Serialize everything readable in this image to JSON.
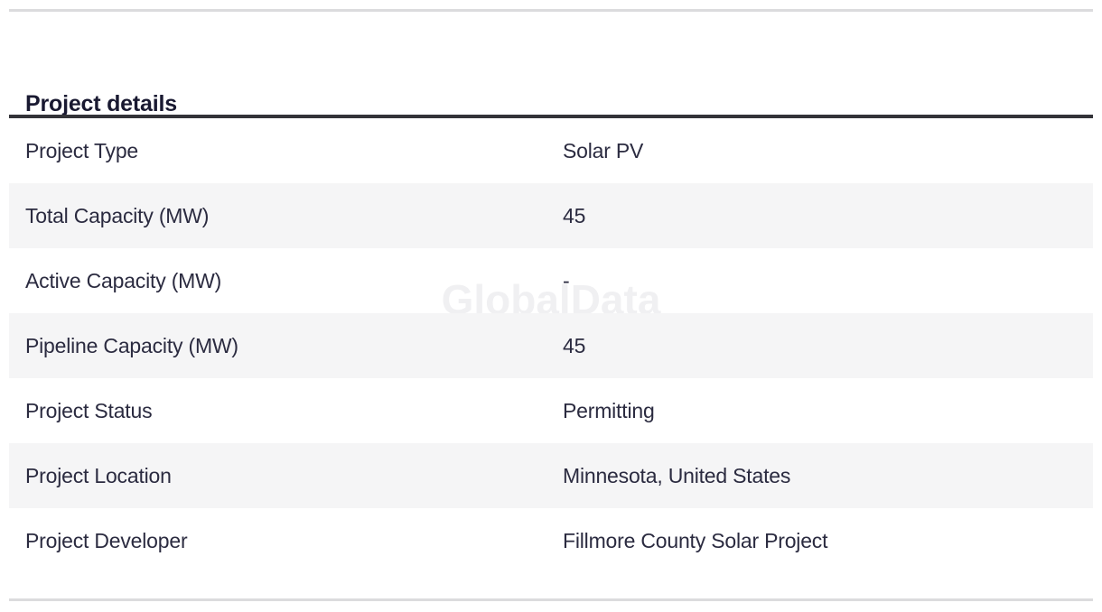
{
  "watermark": "GlobalData",
  "section": {
    "title": "Project details",
    "rows": [
      {
        "label": "Project Type",
        "value": "Solar PV"
      },
      {
        "label": "Total Capacity (MW)",
        "value": "45"
      },
      {
        "label": "Active Capacity (MW)",
        "value": "-"
      },
      {
        "label": "Pipeline Capacity (MW)",
        "value": "45"
      },
      {
        "label": "Project Status",
        "value": "Permitting"
      },
      {
        "label": "Project Location",
        "value": "Minnesota, United States"
      },
      {
        "label": "Project Developer",
        "value": "Fillmore County Solar Project"
      }
    ]
  },
  "colors": {
    "heading_text": "#191931",
    "row_text": "#2b2b40",
    "alt_row_bg": "#f5f5f6",
    "thick_rule": "#333338",
    "thin_rule": "#dbdbdd",
    "watermark_text": "#ededf0"
  }
}
